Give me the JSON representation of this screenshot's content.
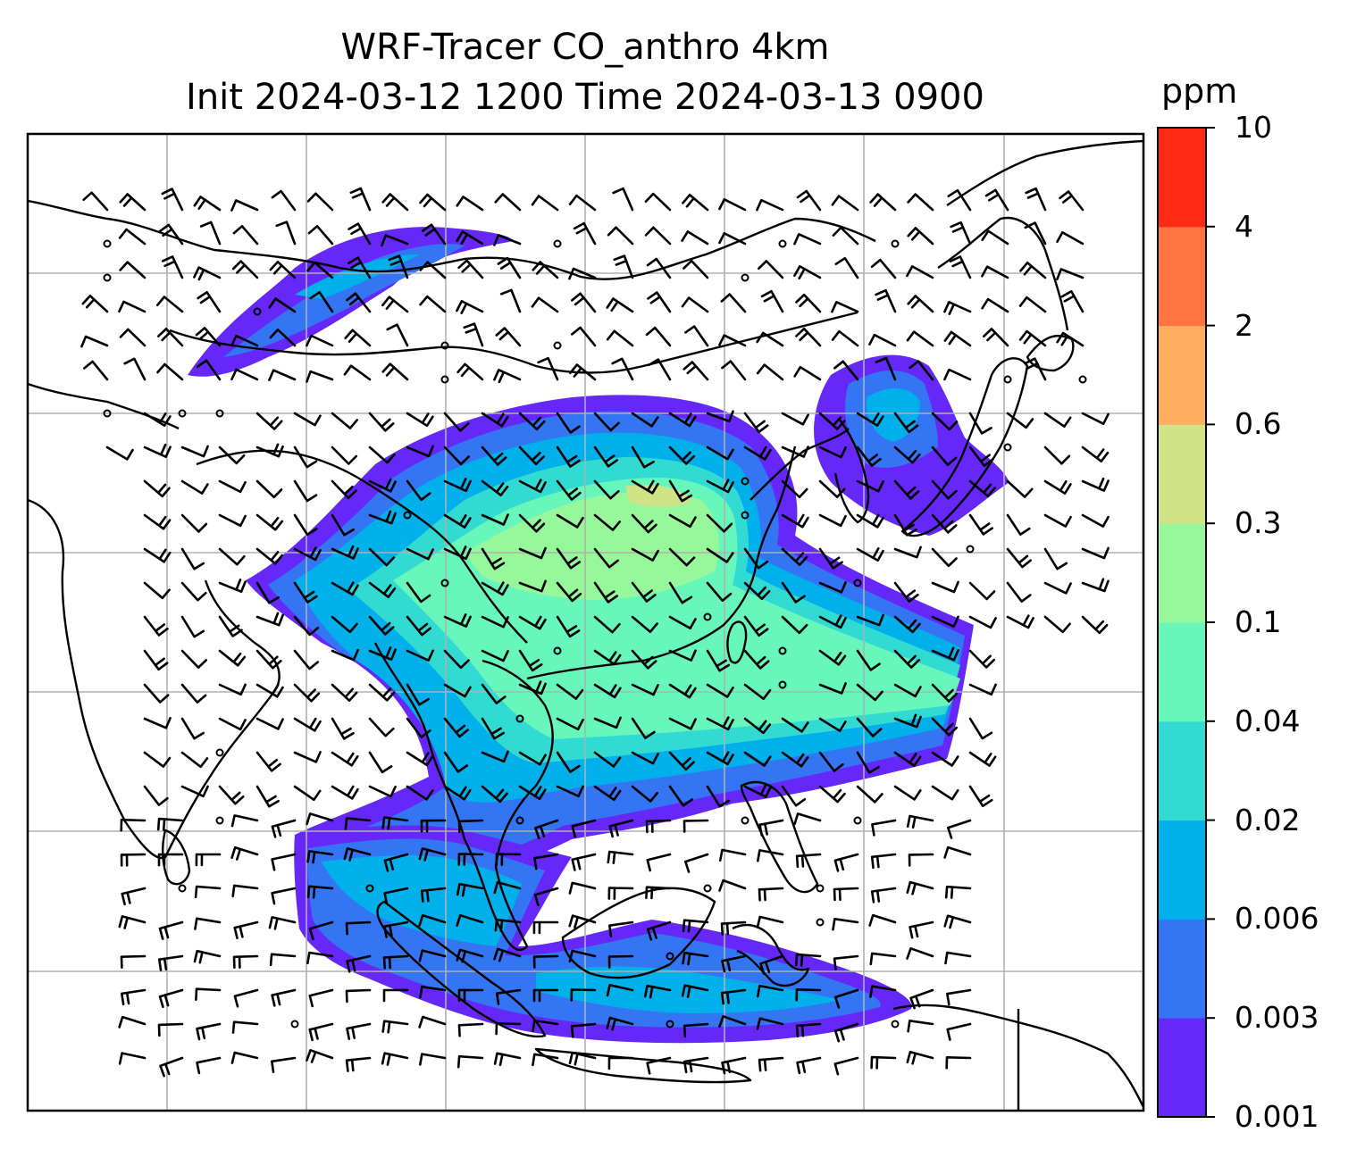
{
  "title": {
    "line1": "WRF-Tracer CO_anthro 4km",
    "line2": "Init 2024-03-12 1200 Time 2024-03-13 0900"
  },
  "colorbar": {
    "unit": "ppm",
    "tick_labels": [
      "0.001",
      "0.003",
      "0.006",
      "0.02",
      "0.04",
      "0.1",
      "0.3",
      "0.6",
      "2",
      "4",
      "10"
    ],
    "colors": [
      "#6528f8",
      "#3375f3",
      "#00b0ea",
      "#32dbd2",
      "#67f7bd",
      "#97f79b",
      "#d0e487",
      "#fdae61",
      "#ff7440",
      "#ff2a14"
    ]
  },
  "map": {
    "gridlines": true,
    "gridline_color": "#b0b0b0",
    "coastline_color": "#000000",
    "frame_color": "#000000"
  }
}
